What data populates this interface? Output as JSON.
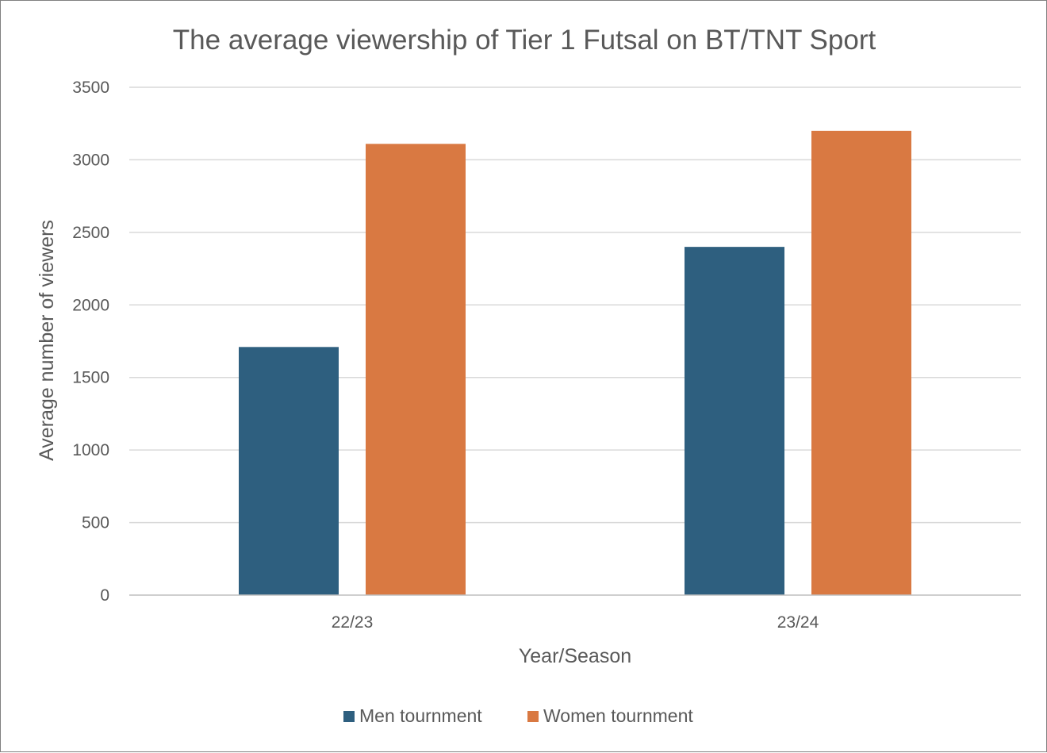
{
  "chart_data": {
    "type": "bar",
    "title": "The average viewership of Tier 1 Futsal on BT/TNT Sport",
    "xlabel": "Year/Season",
    "ylabel": "Average number of viewers",
    "categories": [
      "22/23",
      "23/24"
    ],
    "series": [
      {
        "name": "Men tournment",
        "color": "#2e5f7f",
        "values": [
          1710,
          2400
        ]
      },
      {
        "name": "Women tournment",
        "color": "#d97942",
        "values": [
          3110,
          3200
        ]
      }
    ],
    "ylim": [
      0,
      3500
    ],
    "yticks": [
      0,
      500,
      1000,
      1500,
      2000,
      2500,
      3000,
      3500
    ],
    "grid": true,
    "legend": "bottom"
  }
}
